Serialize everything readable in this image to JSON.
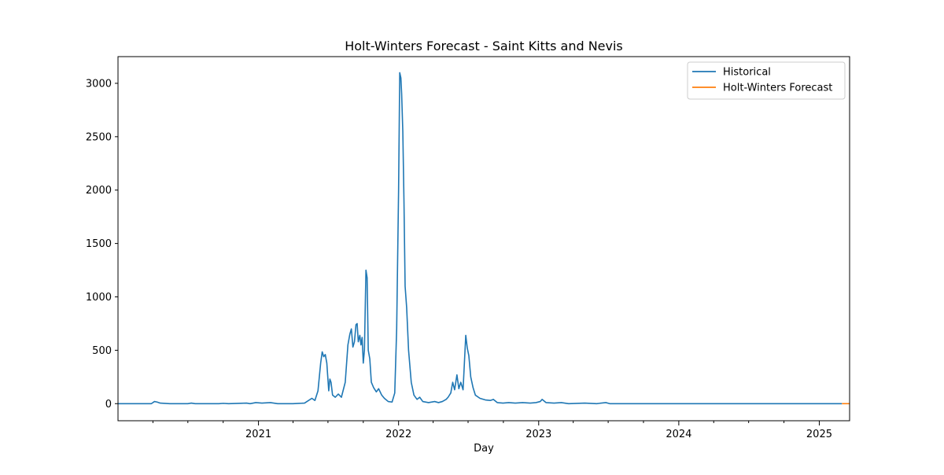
{
  "chart_data": {
    "type": "line",
    "title": "Holt-Winters Forecast - Saint Kitts and Nevis",
    "xlabel": "Day",
    "ylabel": "",
    "x_axis_type": "date",
    "xlim": [
      "2020-01-01",
      "2025-03-21"
    ],
    "ylim": [
      -160,
      3250
    ],
    "y_ticks": [
      0,
      500,
      1000,
      1500,
      2000,
      2500,
      3000
    ],
    "x_ticks": [
      {
        "date": "2021-01-01",
        "label": "2021"
      },
      {
        "date": "2022-01-01",
        "label": "2022"
      },
      {
        "date": "2023-01-01",
        "label": "2023"
      },
      {
        "date": "2024-01-01",
        "label": "2024"
      },
      {
        "date": "2025-01-01",
        "label": "2025"
      }
    ],
    "x_minor_ticks": [
      "2020-04-01",
      "2020-07-01",
      "2020-10-01",
      "2021-04-01",
      "2021-07-01",
      "2021-10-01",
      "2022-04-01",
      "2022-07-01",
      "2022-10-01",
      "2023-04-01",
      "2023-07-01",
      "2023-10-01",
      "2024-04-01",
      "2024-07-01",
      "2024-10-01"
    ],
    "grid": false,
    "legend": {
      "placement": "top-right",
      "entries": [
        "Historical",
        "Holt-Winters Forecast"
      ]
    },
    "series": [
      {
        "name": "Historical",
        "color": "#1f77b4",
        "points": [
          [
            "2020-01-01",
            0
          ],
          [
            "2020-03-28",
            0
          ],
          [
            "2020-04-05",
            20
          ],
          [
            "2020-04-12",
            15
          ],
          [
            "2020-04-20",
            5
          ],
          [
            "2020-05-15",
            0
          ],
          [
            "2020-07-01",
            0
          ],
          [
            "2020-07-10",
            5
          ],
          [
            "2020-07-20",
            0
          ],
          [
            "2020-09-20",
            0
          ],
          [
            "2020-10-01",
            3
          ],
          [
            "2020-10-15",
            0
          ],
          [
            "2020-12-01",
            5
          ],
          [
            "2020-12-10",
            0
          ],
          [
            "2020-12-25",
            10
          ],
          [
            "2021-01-10",
            5
          ],
          [
            "2021-02-01",
            10
          ],
          [
            "2021-02-20",
            0
          ],
          [
            "2021-04-01",
            0
          ],
          [
            "2021-05-01",
            5
          ],
          [
            "2021-05-20",
            50
          ],
          [
            "2021-05-28",
            30
          ],
          [
            "2021-06-05",
            120
          ],
          [
            "2021-06-12",
            380
          ],
          [
            "2021-06-16",
            485
          ],
          [
            "2021-06-20",
            440
          ],
          [
            "2021-06-24",
            460
          ],
          [
            "2021-06-28",
            380
          ],
          [
            "2021-07-03",
            120
          ],
          [
            "2021-07-06",
            230
          ],
          [
            "2021-07-09",
            200
          ],
          [
            "2021-07-13",
            80
          ],
          [
            "2021-07-20",
            60
          ],
          [
            "2021-07-28",
            90
          ],
          [
            "2021-08-05",
            60
          ],
          [
            "2021-08-15",
            200
          ],
          [
            "2021-08-22",
            550
          ],
          [
            "2021-08-27",
            650
          ],
          [
            "2021-08-31",
            700
          ],
          [
            "2021-09-04",
            530
          ],
          [
            "2021-09-08",
            580
          ],
          [
            "2021-09-12",
            740
          ],
          [
            "2021-09-15",
            750
          ],
          [
            "2021-09-18",
            580
          ],
          [
            "2021-09-22",
            640
          ],
          [
            "2021-09-25",
            550
          ],
          [
            "2021-09-28",
            620
          ],
          [
            "2021-10-01",
            380
          ],
          [
            "2021-10-04",
            500
          ],
          [
            "2021-10-08",
            1250
          ],
          [
            "2021-10-11",
            1180
          ],
          [
            "2021-10-14",
            500
          ],
          [
            "2021-10-18",
            420
          ],
          [
            "2021-10-22",
            200
          ],
          [
            "2021-10-28",
            150
          ],
          [
            "2021-11-04",
            110
          ],
          [
            "2021-11-10",
            140
          ],
          [
            "2021-11-18",
            80
          ],
          [
            "2021-11-25",
            50
          ],
          [
            "2021-12-05",
            20
          ],
          [
            "2021-12-15",
            15
          ],
          [
            "2021-12-22",
            100
          ],
          [
            "2021-12-27",
            700
          ],
          [
            "2022-01-01",
            2000
          ],
          [
            "2022-01-04",
            3100
          ],
          [
            "2022-01-07",
            3050
          ],
          [
            "2022-01-09",
            2900
          ],
          [
            "2022-01-12",
            2550
          ],
          [
            "2022-01-15",
            1900
          ],
          [
            "2022-01-18",
            1100
          ],
          [
            "2022-01-22",
            900
          ],
          [
            "2022-01-27",
            500
          ],
          [
            "2022-02-03",
            200
          ],
          [
            "2022-02-10",
            80
          ],
          [
            "2022-02-18",
            40
          ],
          [
            "2022-02-25",
            60
          ],
          [
            "2022-03-05",
            20
          ],
          [
            "2022-03-20",
            10
          ],
          [
            "2022-04-05",
            20
          ],
          [
            "2022-04-15",
            10
          ],
          [
            "2022-04-25",
            20
          ],
          [
            "2022-05-05",
            40
          ],
          [
            "2022-05-10",
            60
          ],
          [
            "2022-05-17",
            100
          ],
          [
            "2022-05-22",
            200
          ],
          [
            "2022-05-27",
            130
          ],
          [
            "2022-06-02",
            270
          ],
          [
            "2022-06-07",
            140
          ],
          [
            "2022-06-12",
            200
          ],
          [
            "2022-06-18",
            130
          ],
          [
            "2022-06-25",
            640
          ],
          [
            "2022-06-29",
            520
          ],
          [
            "2022-07-03",
            450
          ],
          [
            "2022-07-08",
            250
          ],
          [
            "2022-07-14",
            150
          ],
          [
            "2022-07-20",
            80
          ],
          [
            "2022-08-01",
            50
          ],
          [
            "2022-08-15",
            35
          ],
          [
            "2022-08-28",
            30
          ],
          [
            "2022-09-05",
            40
          ],
          [
            "2022-09-15",
            10
          ],
          [
            "2022-09-30",
            5
          ],
          [
            "2022-10-15",
            10
          ],
          [
            "2022-11-01",
            5
          ],
          [
            "2022-11-20",
            10
          ],
          [
            "2022-12-10",
            5
          ],
          [
            "2022-12-25",
            10
          ],
          [
            "2023-01-05",
            20
          ],
          [
            "2023-01-10",
            40
          ],
          [
            "2023-01-20",
            10
          ],
          [
            "2023-02-10",
            5
          ],
          [
            "2023-03-01",
            10
          ],
          [
            "2023-03-20",
            0
          ],
          [
            "2023-05-01",
            5
          ],
          [
            "2023-06-01",
            0
          ],
          [
            "2023-06-25",
            10
          ],
          [
            "2023-07-05",
            0
          ],
          [
            "2025-03-01",
            0
          ]
        ]
      },
      {
        "name": "Holt-Winters Forecast",
        "color": "#ff7f0e",
        "points": [
          [
            "2025-03-01",
            0
          ],
          [
            "2025-03-21",
            0
          ]
        ]
      }
    ]
  }
}
